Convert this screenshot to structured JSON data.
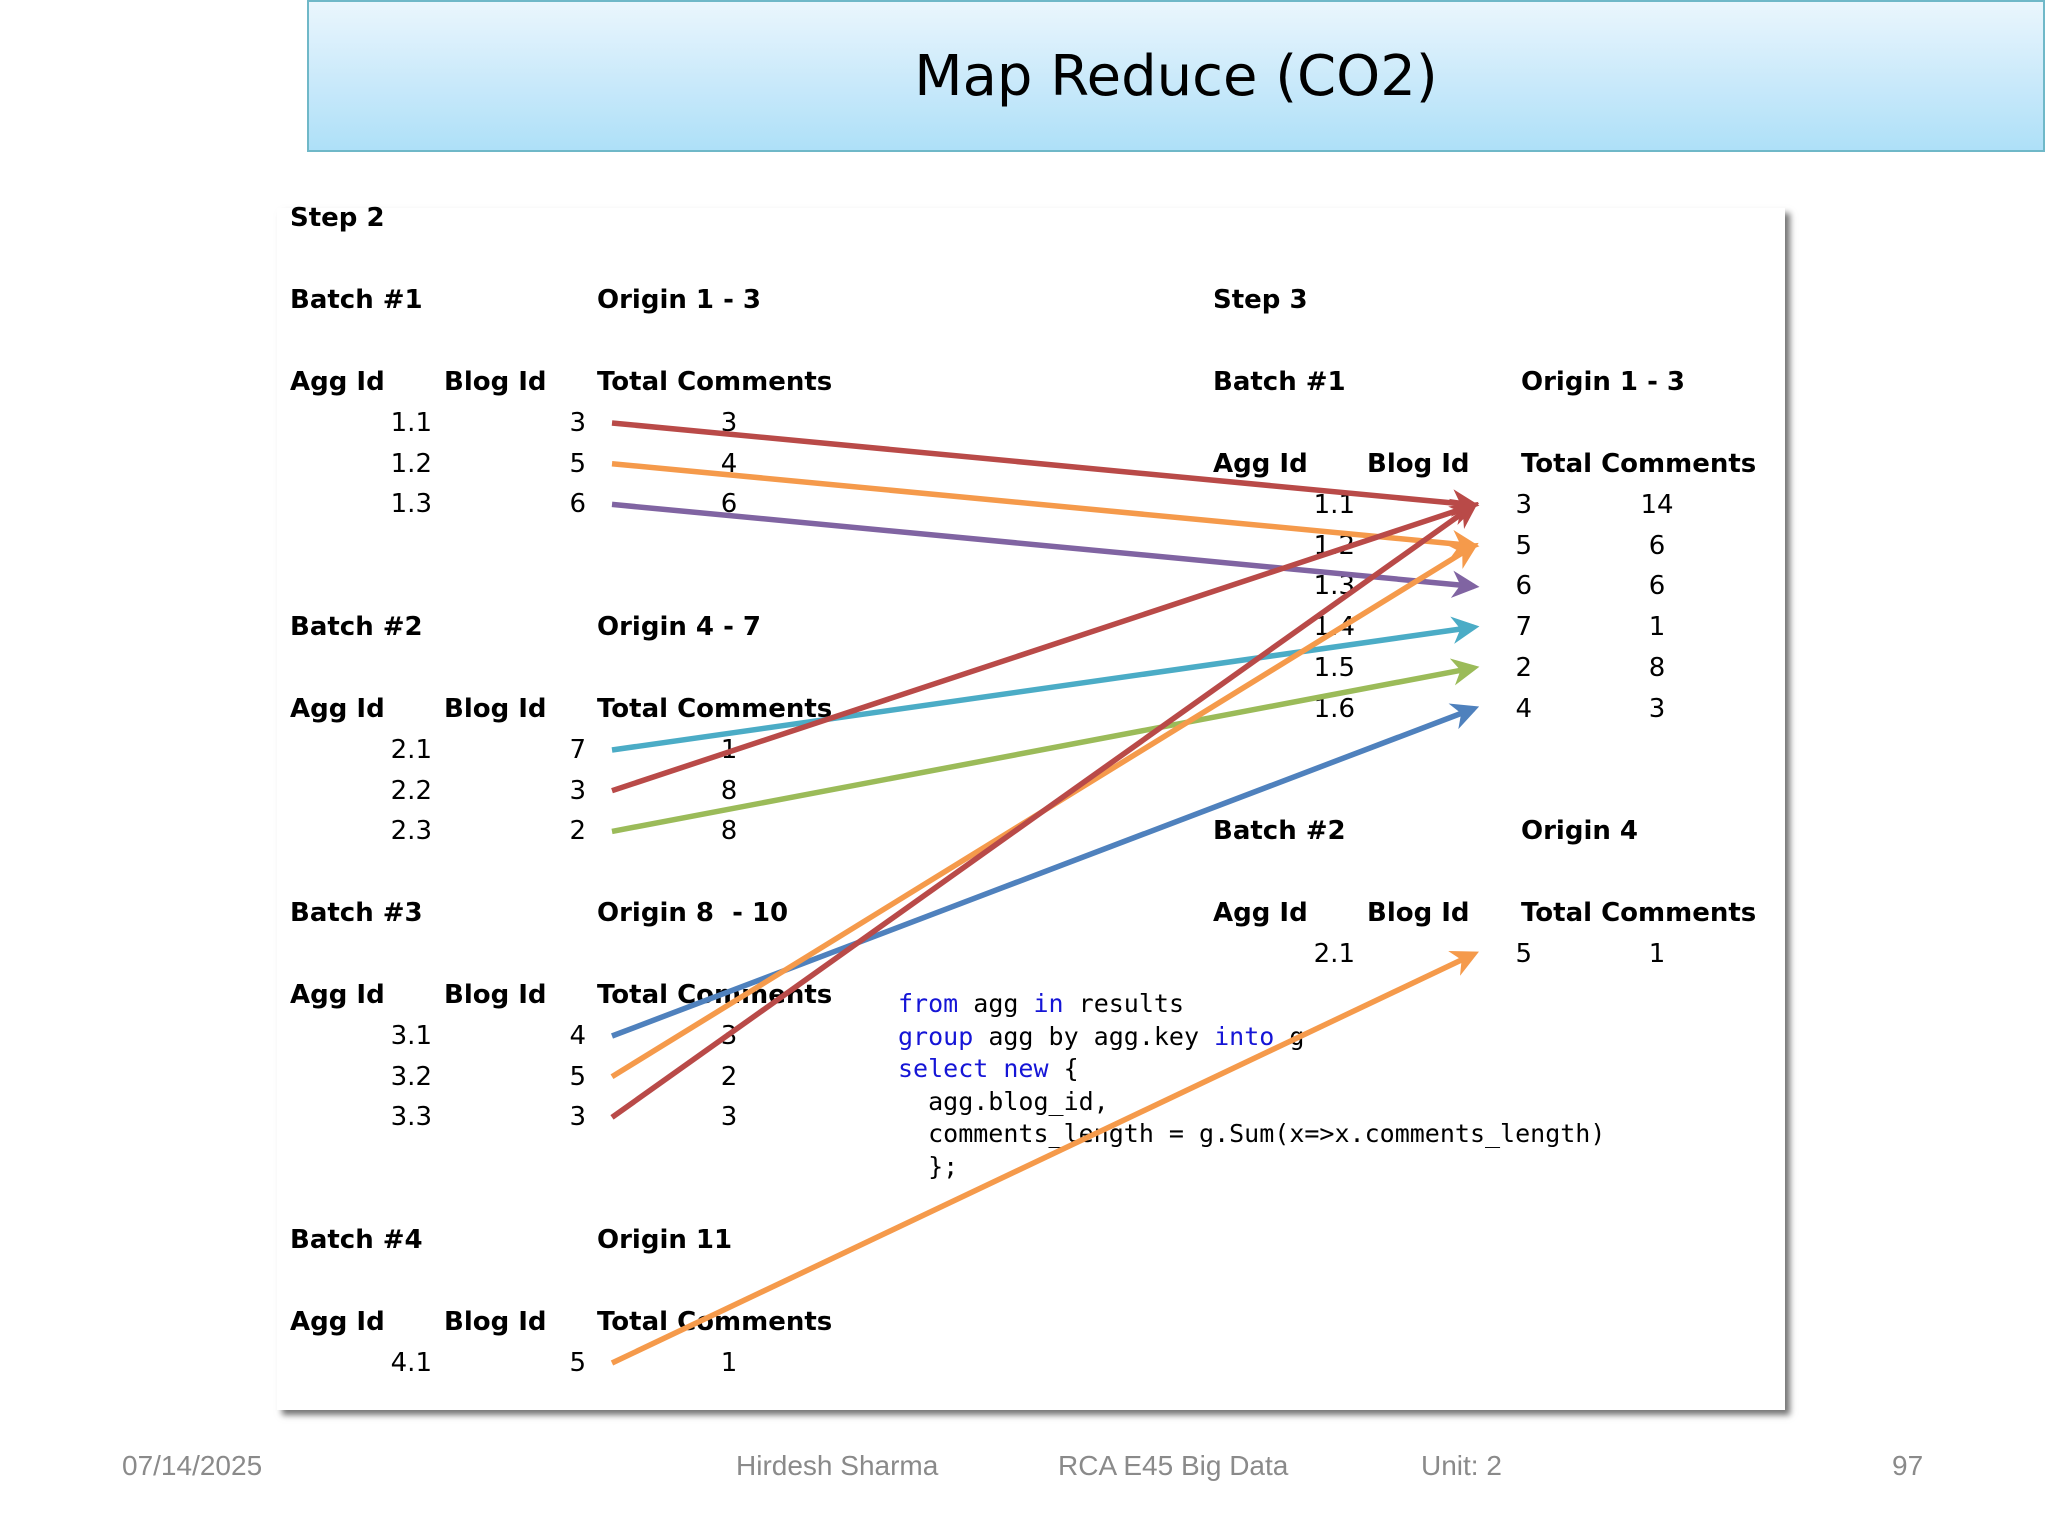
{
  "title": "Map Reduce (CO2)",
  "step2": {
    "label": "Step 2",
    "batches": [
      {
        "label": "Batch #1",
        "origin": "Origin 1 - 3",
        "headers": [
          "Agg Id",
          "Blog Id",
          "Total Comments"
        ],
        "rows": [
          [
            "1.1",
            "3",
            "3"
          ],
          [
            "1.2",
            "5",
            "4"
          ],
          [
            "1.3",
            "6",
            "6"
          ]
        ]
      },
      {
        "label": "Batch #2",
        "origin": "Origin 4 - 7",
        "headers": [
          "Agg Id",
          "Blog Id",
          "Total Comments"
        ],
        "rows": [
          [
            "2.1",
            "7",
            "1"
          ],
          [
            "2.2",
            "3",
            "8"
          ],
          [
            "2.3",
            "2",
            "8"
          ]
        ]
      },
      {
        "label": "Batch #3",
        "origin": "Origin 8  - 10",
        "headers": [
          "Agg Id",
          "Blog Id",
          "Total Comments"
        ],
        "rows": [
          [
            "3.1",
            "4",
            "3"
          ],
          [
            "3.2",
            "5",
            "2"
          ],
          [
            "3.3",
            "3",
            "3"
          ]
        ]
      },
      {
        "label": "Batch #4",
        "origin": "Origin 11",
        "headers": [
          "Agg Id",
          "Blog Id",
          "Total Comments"
        ],
        "rows": [
          [
            "4.1",
            "5",
            "1"
          ]
        ]
      }
    ]
  },
  "step3": {
    "label": "Step 3",
    "batches": [
      {
        "label": "Batch #1",
        "origin": "Origin 1 - 3",
        "headers": [
          "Agg Id",
          "Blog Id",
          "Total Comments"
        ],
        "rows": [
          [
            "1.1",
            "3",
            "14"
          ],
          [
            "1.2",
            "5",
            "6"
          ],
          [
            "1.3",
            "6",
            "6"
          ],
          [
            "1.4",
            "7",
            "1"
          ],
          [
            "1.5",
            "2",
            "8"
          ],
          [
            "1.6",
            "4",
            "3"
          ]
        ]
      },
      {
        "label": "Batch #2",
        "origin": "Origin 4",
        "headers": [
          "Agg Id",
          "Blog Id",
          "Total Comments"
        ],
        "rows": [
          [
            "2.1",
            "5",
            "1"
          ]
        ]
      }
    ]
  },
  "code": {
    "lines": [
      [
        {
          "k": true,
          "t": "from"
        },
        {
          "k": false,
          "t": " agg "
        },
        {
          "k": true,
          "t": "in"
        },
        {
          "k": false,
          "t": " results"
        }
      ],
      [
        {
          "k": true,
          "t": "group"
        },
        {
          "k": false,
          "t": " agg by agg.key "
        },
        {
          "k": true,
          "t": "into"
        },
        {
          "k": false,
          "t": " g"
        }
      ],
      [
        {
          "k": true,
          "t": "select"
        },
        {
          "k": false,
          "t": " "
        },
        {
          "k": true,
          "t": "new"
        },
        {
          "k": false,
          "t": " {"
        }
      ],
      [
        {
          "k": false,
          "t": "  agg.blog_id,"
        }
      ],
      [
        {
          "k": false,
          "t": "  comments_length = g.Sum(x=>x.comments_length)"
        }
      ],
      [
        {
          "k": false,
          "t": "  };"
        }
      ]
    ]
  },
  "arrows": [
    {
      "from": "step2.batch1.row1",
      "to": "step3.batch1.blog3",
      "color": "#b94a48"
    },
    {
      "from": "step2.batch1.row2",
      "to": "step3.batch1.blog5",
      "color": "#f59a4b"
    },
    {
      "from": "step2.batch1.row3",
      "to": "step3.batch1.blog6",
      "color": "#8064a2"
    },
    {
      "from": "step2.batch2.row1",
      "to": "step3.batch1.blog7",
      "color": "#4bacc6"
    },
    {
      "from": "step2.batch2.row2",
      "to": "step3.batch1.blog3",
      "color": "#b94a48"
    },
    {
      "from": "step2.batch2.row3",
      "to": "step3.batch1.blog2",
      "color": "#9bbb59"
    },
    {
      "from": "step2.batch3.row1",
      "to": "step3.batch1.blog4",
      "color": "#4f81bd"
    },
    {
      "from": "step2.batch3.row2",
      "to": "step3.batch1.blog5",
      "color": "#f59a4b"
    },
    {
      "from": "step2.batch3.row3",
      "to": "step3.batch1.blog3",
      "color": "#b94a48"
    },
    {
      "from": "step2.batch4.row1",
      "to": "step3.batch2.blog5",
      "color": "#f59a4b"
    }
  ],
  "footer": {
    "date": "07/14/2025",
    "author": "Hirdesh Sharma",
    "course": "RCA E45 Big Data",
    "unit": "Unit: 2",
    "page": "97"
  }
}
